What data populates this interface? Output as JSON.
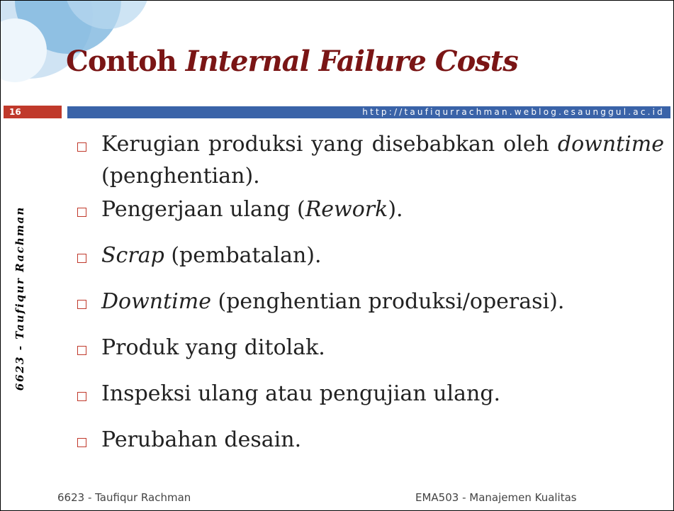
{
  "header": {
    "title": "Contoh",
    "title_italic": "Internal Failure Costs",
    "slide_number": "16",
    "url": "http://taufiqurrachman.weblog.esaunggul.ac.id"
  },
  "side_text": "6623 - Taufiqur Rachman",
  "bullets": [
    [
      {
        "text": "Kerugian produksi yang disebabkan oleh ",
        "italic": false
      },
      {
        "text": "downtime",
        "italic": true
      },
      {
        "text": " (penghentian).",
        "italic": false
      }
    ],
    [
      {
        "text": "Pengerjaan ulang (",
        "italic": false
      },
      {
        "text": "Rework",
        "italic": true
      },
      {
        "text": ").",
        "italic": false
      }
    ],
    [
      {
        "text": "Scrap",
        "italic": true
      },
      {
        "text": " (pembatalan).",
        "italic": false
      }
    ],
    [
      {
        "text": "Downtime",
        "italic": true
      },
      {
        "text": " (penghentian produksi/operasi).",
        "italic": false
      }
    ],
    [
      {
        "text": "Produk yang ditolak.",
        "italic": false
      }
    ],
    [
      {
        "text": "Inspeksi ulang atau pengujian ulang.",
        "italic": false
      }
    ],
    [
      {
        "text": "Perubahan desain.",
        "italic": false
      }
    ]
  ],
  "footer": {
    "left": "6623 - Taufiqur Rachman",
    "right": "EMA503 - Manajemen Kualitas"
  }
}
